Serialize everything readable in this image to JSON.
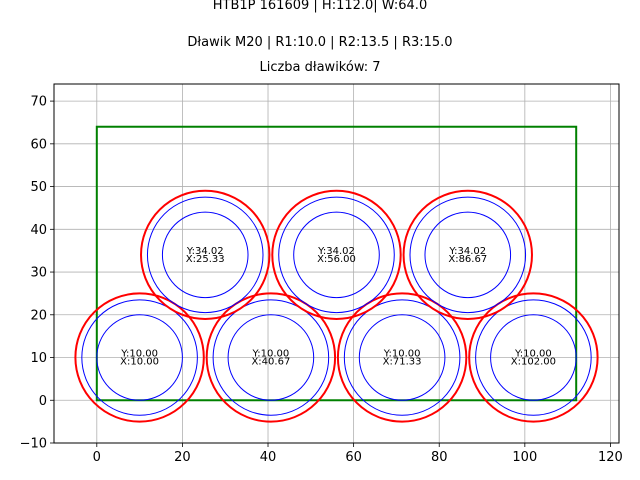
{
  "chart_data": {
    "type": "scatter",
    "title_line1": "HTB1P 161609 | H:112.0| W:64.0",
    "title_line2": "Dławik M20 | R1:10.0 | R2:13.5 | R3:15.0",
    "title_line3": "Liczba dławików: 7",
    "xlim": [
      -10,
      122
    ],
    "ylim": [
      -10,
      74
    ],
    "x_ticks": [
      0,
      20,
      40,
      60,
      80,
      100,
      120
    ],
    "y_ticks": [
      -10,
      0,
      10,
      20,
      30,
      40,
      50,
      60,
      70
    ],
    "grid": true,
    "rectangle": {
      "x0": 0,
      "y0": 0,
      "x1": 112,
      "y1": 64,
      "color": "#008000"
    },
    "radii": {
      "r1": 10.0,
      "r2": 13.5,
      "r3": 15.0
    },
    "colors": {
      "inner": "#0000ff",
      "outer": "#ff0000"
    },
    "glands": [
      {
        "x": 10.0,
        "y": 10.0,
        "label_y": "Y:10.00",
        "label_x": "X:10.00"
      },
      {
        "x": 40.67,
        "y": 10.0,
        "label_y": "Y:10.00",
        "label_x": "X:40.67"
      },
      {
        "x": 71.33,
        "y": 10.0,
        "label_y": "Y:10.00",
        "label_x": "X:71.33"
      },
      {
        "x": 102.0,
        "y": 10.0,
        "label_y": "Y:10.00",
        "label_x": "X:102.00"
      },
      {
        "x": 25.33,
        "y": 34.02,
        "label_y": "Y:34.02",
        "label_x": "X:25.33"
      },
      {
        "x": 56.0,
        "y": 34.02,
        "label_y": "Y:34.02",
        "label_x": "X:56.00"
      },
      {
        "x": 86.67,
        "y": 34.02,
        "label_y": "Y:34.02",
        "label_x": "X:86.67"
      }
    ]
  }
}
